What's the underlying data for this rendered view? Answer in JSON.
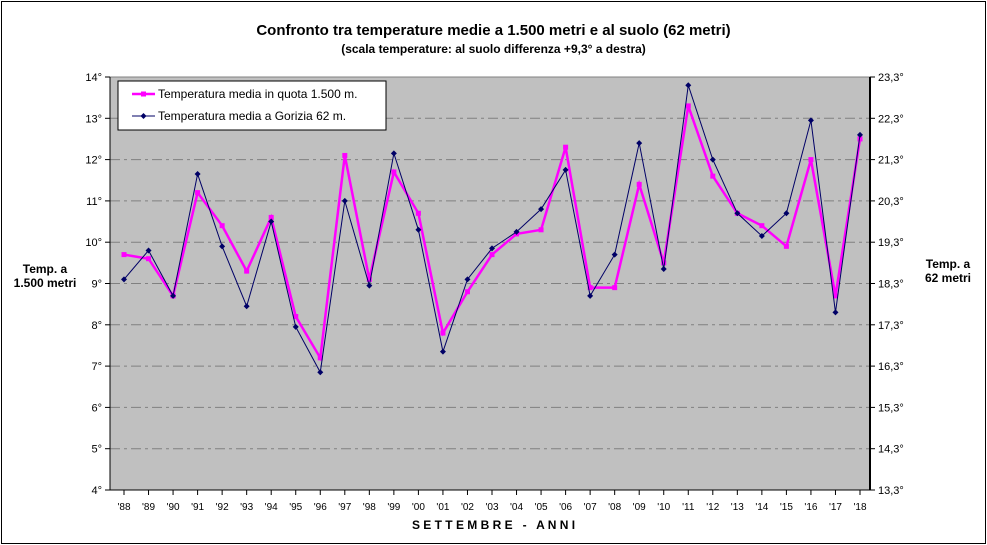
{
  "chart_data": {
    "type": "line",
    "title": "Confronto tra temperature medie a 1.500 metri e al suolo (62 metri)",
    "subtitle": "(scala temperature: al suolo differenza +9,3° a destra)",
    "xlabel": "S E T T E M B R E   -   A N N I",
    "ylabel_left": "Temp. a 1.500 metri",
    "ylabel_right": "Temp. a 62 metri",
    "ylim_left": [
      4,
      14
    ],
    "ylim_right": [
      13.3,
      23.3
    ],
    "yticks_left": [
      "4°",
      "5°",
      "6°",
      "7°",
      "8°",
      "9°",
      "10°",
      "11°",
      "12°",
      "13°",
      "14°"
    ],
    "yticks_right": [
      "13,3°",
      "14,3°",
      "15,3°",
      "16,3°",
      "17,3°",
      "18,3°",
      "19,3°",
      "20,3°",
      "21,3°",
      "22,3°",
      "23,3°"
    ],
    "grid": true,
    "legend_position": "top-left",
    "categories": [
      "'88",
      "'89",
      "'90",
      "'91",
      "'92",
      "'93",
      "'94",
      "'95",
      "'96",
      "'97",
      "'98",
      "'99",
      "'00",
      "'01",
      "'02",
      "'03",
      "'04",
      "'05",
      "'06",
      "'07",
      "'08",
      "'09",
      "'10",
      "'11",
      "'12",
      "'13",
      "'14",
      "'15",
      "'16",
      "'17",
      "'18"
    ],
    "series": [
      {
        "name": "Temperatura media in quota 1.500 m.",
        "axis": "left",
        "color": "#ff00ff",
        "values": [
          9.7,
          9.6,
          8.7,
          11.2,
          10.4,
          9.3,
          10.6,
          8.2,
          7.2,
          12.1,
          9.1,
          11.7,
          10.7,
          7.8,
          8.8,
          9.7,
          10.2,
          10.3,
          12.3,
          8.9,
          8.9,
          11.4,
          9.5,
          13.3,
          11.6,
          10.7,
          10.4,
          9.9,
          12.0,
          8.7,
          12.5
        ]
      },
      {
        "name": "Temperatura media a Gorizia 62 m.",
        "axis": "right",
        "color": "#000066",
        "values": [
          18.4,
          19.1,
          18.0,
          20.95,
          19.2,
          17.75,
          19.8,
          17.25,
          16.15,
          20.3,
          18.25,
          21.45,
          19.6,
          16.65,
          18.4,
          19.15,
          19.55,
          20.1,
          21.05,
          18.0,
          19.0,
          21.7,
          18.65,
          23.1,
          21.3,
          20.0,
          19.45,
          20.0,
          22.25,
          17.6,
          21.9
        ]
      }
    ],
    "plot_background": "#c0c0c0"
  }
}
